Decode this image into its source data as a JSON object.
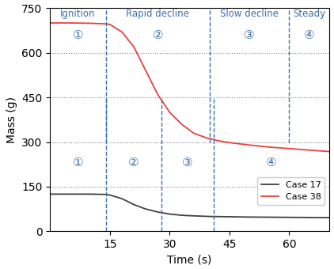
{
  "chart_data": {
    "type": "line",
    "x_label": "Time (s)",
    "y_label": "Mass (g)",
    "xlim": [
      0,
      70
    ],
    "xticks": [
      15,
      30,
      45,
      60
    ],
    "ylim": [
      0,
      750
    ],
    "yticks": [
      0,
      150,
      300,
      450,
      600,
      750
    ],
    "grid": true,
    "legend": "lower right",
    "series": [
      {
        "name": "Case 17",
        "color": "#404040",
        "line_style": "solid",
        "x": [
          0,
          5,
          10,
          14,
          15,
          18,
          21,
          24,
          27,
          30,
          33,
          36,
          40,
          45,
          50,
          60,
          70
        ],
        "values": [
          125,
          125,
          125,
          124,
          122,
          110,
          90,
          75,
          65,
          58,
          54,
          52,
          50,
          49,
          48,
          47,
          46
        ]
      },
      {
        "name": "Case 38",
        "color": "#e8413c",
        "line_style": "solid",
        "x": [
          0,
          5,
          10,
          14,
          15,
          18,
          21,
          24,
          27,
          30,
          33,
          36,
          39,
          42,
          45,
          50,
          55,
          60,
          65,
          70
        ],
        "values": [
          700,
          700,
          699,
          697,
          695,
          670,
          620,
          540,
          460,
          400,
          360,
          330,
          315,
          305,
          298,
          290,
          283,
          278,
          273,
          268
        ]
      }
    ],
    "phases_case38": [
      {
        "number": "①",
        "label": "Ignition",
        "start": 0,
        "end": 14
      },
      {
        "number": "②",
        "label": "Rapid decline",
        "start": 14,
        "end": 40
      },
      {
        "number": "③",
        "label": "Slow decline",
        "start": 40,
        "end": 60
      },
      {
        "number": "④",
        "label": "Steady",
        "start": 60,
        "end": 70
      }
    ],
    "phases_case17": [
      {
        "number": "①",
        "start": 0,
        "end": 14
      },
      {
        "number": "②",
        "start": 14,
        "end": 28
      },
      {
        "number": "③",
        "start": 28,
        "end": 41
      },
      {
        "number": "④",
        "start": 41,
        "end": 70
      }
    ]
  }
}
